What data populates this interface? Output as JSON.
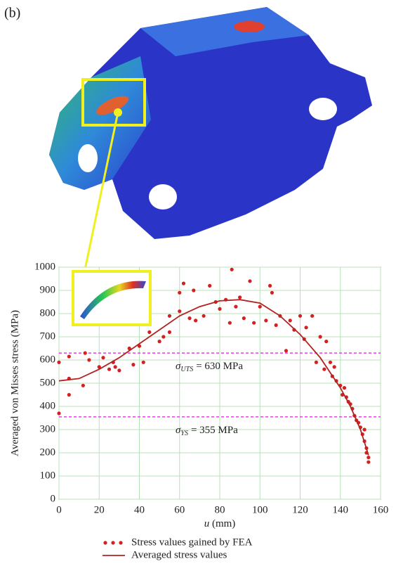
{
  "panel_label": "(b)",
  "chart_data": {
    "type": "scatter",
    "ylabel": "Averaged von Misses stress (MPa)",
    "xlabel": {
      "symbol": "u",
      "unit": "(mm)"
    },
    "xlim": [
      0,
      160
    ],
    "xticks": [
      0,
      20,
      40,
      60,
      80,
      100,
      120,
      140,
      160
    ],
    "ylim": [
      0,
      1000
    ],
    "yticks": [
      0,
      100,
      200,
      300,
      400,
      500,
      600,
      700,
      800,
      900,
      1000
    ],
    "grid": true,
    "reference_lines": [
      {
        "value": 630,
        "symbol": "σ",
        "subscript": "UTS",
        "text": "= 630 MPa",
        "color": "#e040e0"
      },
      {
        "value": 355,
        "symbol": "σ",
        "subscript": "YS",
        "text": "= 355 MPa",
        "color": "#e040e0"
      }
    ],
    "series": [
      {
        "name": "Stress values gained by FEA",
        "type": "scatter",
        "color": "#d42020",
        "x": [
          0,
          0,
          5,
          5,
          5,
          12,
          13,
          15,
          20,
          22,
          25,
          27,
          28,
          30,
          35,
          37,
          40,
          42,
          45,
          50,
          52,
          55,
          55,
          60,
          60,
          62,
          65,
          67,
          68,
          72,
          75,
          78,
          80,
          83,
          85,
          86,
          88,
          90,
          92,
          95,
          97,
          100,
          103,
          105,
          106,
          108,
          110,
          113,
          115,
          117,
          120,
          122,
          123,
          126,
          128,
          130,
          132,
          133,
          135,
          136,
          137,
          138,
          140,
          141,
          142,
          143,
          144,
          145,
          146,
          147,
          148,
          149,
          150,
          151,
          152,
          152,
          153,
          153,
          154,
          154
        ],
        "values": [
          590,
          370,
          615,
          520,
          450,
          490,
          630,
          600,
          570,
          610,
          560,
          590,
          570,
          555,
          650,
          580,
          660,
          590,
          720,
          680,
          700,
          790,
          720,
          810,
          890,
          930,
          780,
          900,
          770,
          790,
          920,
          850,
          820,
          860,
          760,
          990,
          830,
          870,
          780,
          940,
          760,
          830,
          770,
          920,
          890,
          750,
          790,
          640,
          770,
          730,
          790,
          690,
          740,
          790,
          590,
          700,
          560,
          680,
          590,
          530,
          570,
          510,
          490,
          450,
          480,
          440,
          420,
          410,
          390,
          360,
          340,
          330,
          310,
          280,
          300,
          250,
          220,
          200,
          180,
          160
        ]
      },
      {
        "name": "Averaged stress values",
        "type": "line",
        "color": "#b22222",
        "x": [
          0,
          10,
          20,
          30,
          40,
          50,
          60,
          70,
          80,
          90,
          100,
          110,
          120,
          130,
          140,
          145,
          150,
          154
        ],
        "values": [
          510,
          520,
          560,
          610,
          670,
          730,
          790,
          830,
          855,
          860,
          845,
          790,
          710,
          610,
          480,
          400,
          300,
          190
        ]
      }
    ]
  }
}
